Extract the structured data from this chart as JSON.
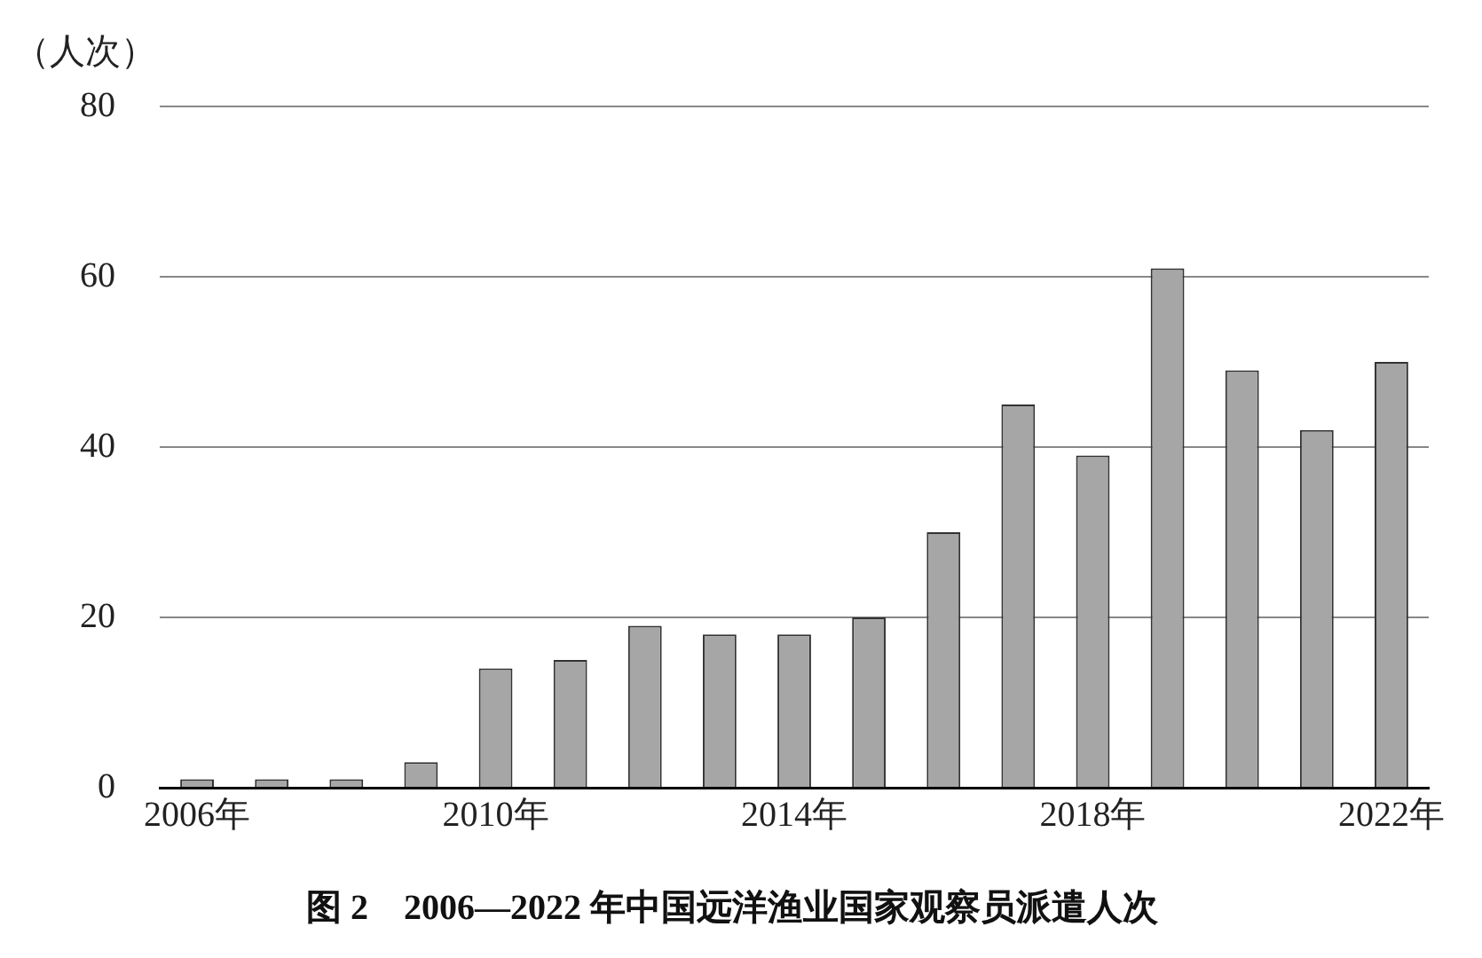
{
  "chart_data": {
    "type": "bar",
    "title": "图 2　2006—2022 年中国远洋渔业国家观察员派遣人次",
    "ylabel": "（人次）",
    "categories": [
      "2006年",
      null,
      null,
      null,
      "2010年",
      null,
      null,
      null,
      "2014年",
      null,
      null,
      null,
      "2018年",
      null,
      null,
      null,
      "2022年"
    ],
    "values": [
      1,
      1,
      1,
      3,
      14,
      15,
      19,
      18,
      18,
      20,
      30,
      45,
      39,
      61,
      49,
      42,
      50
    ],
    "color": "#a6a6a6",
    "ylim": [
      0,
      80
    ],
    "yticks": [
      0,
      20,
      40,
      60,
      80
    ],
    "grid": "y"
  }
}
